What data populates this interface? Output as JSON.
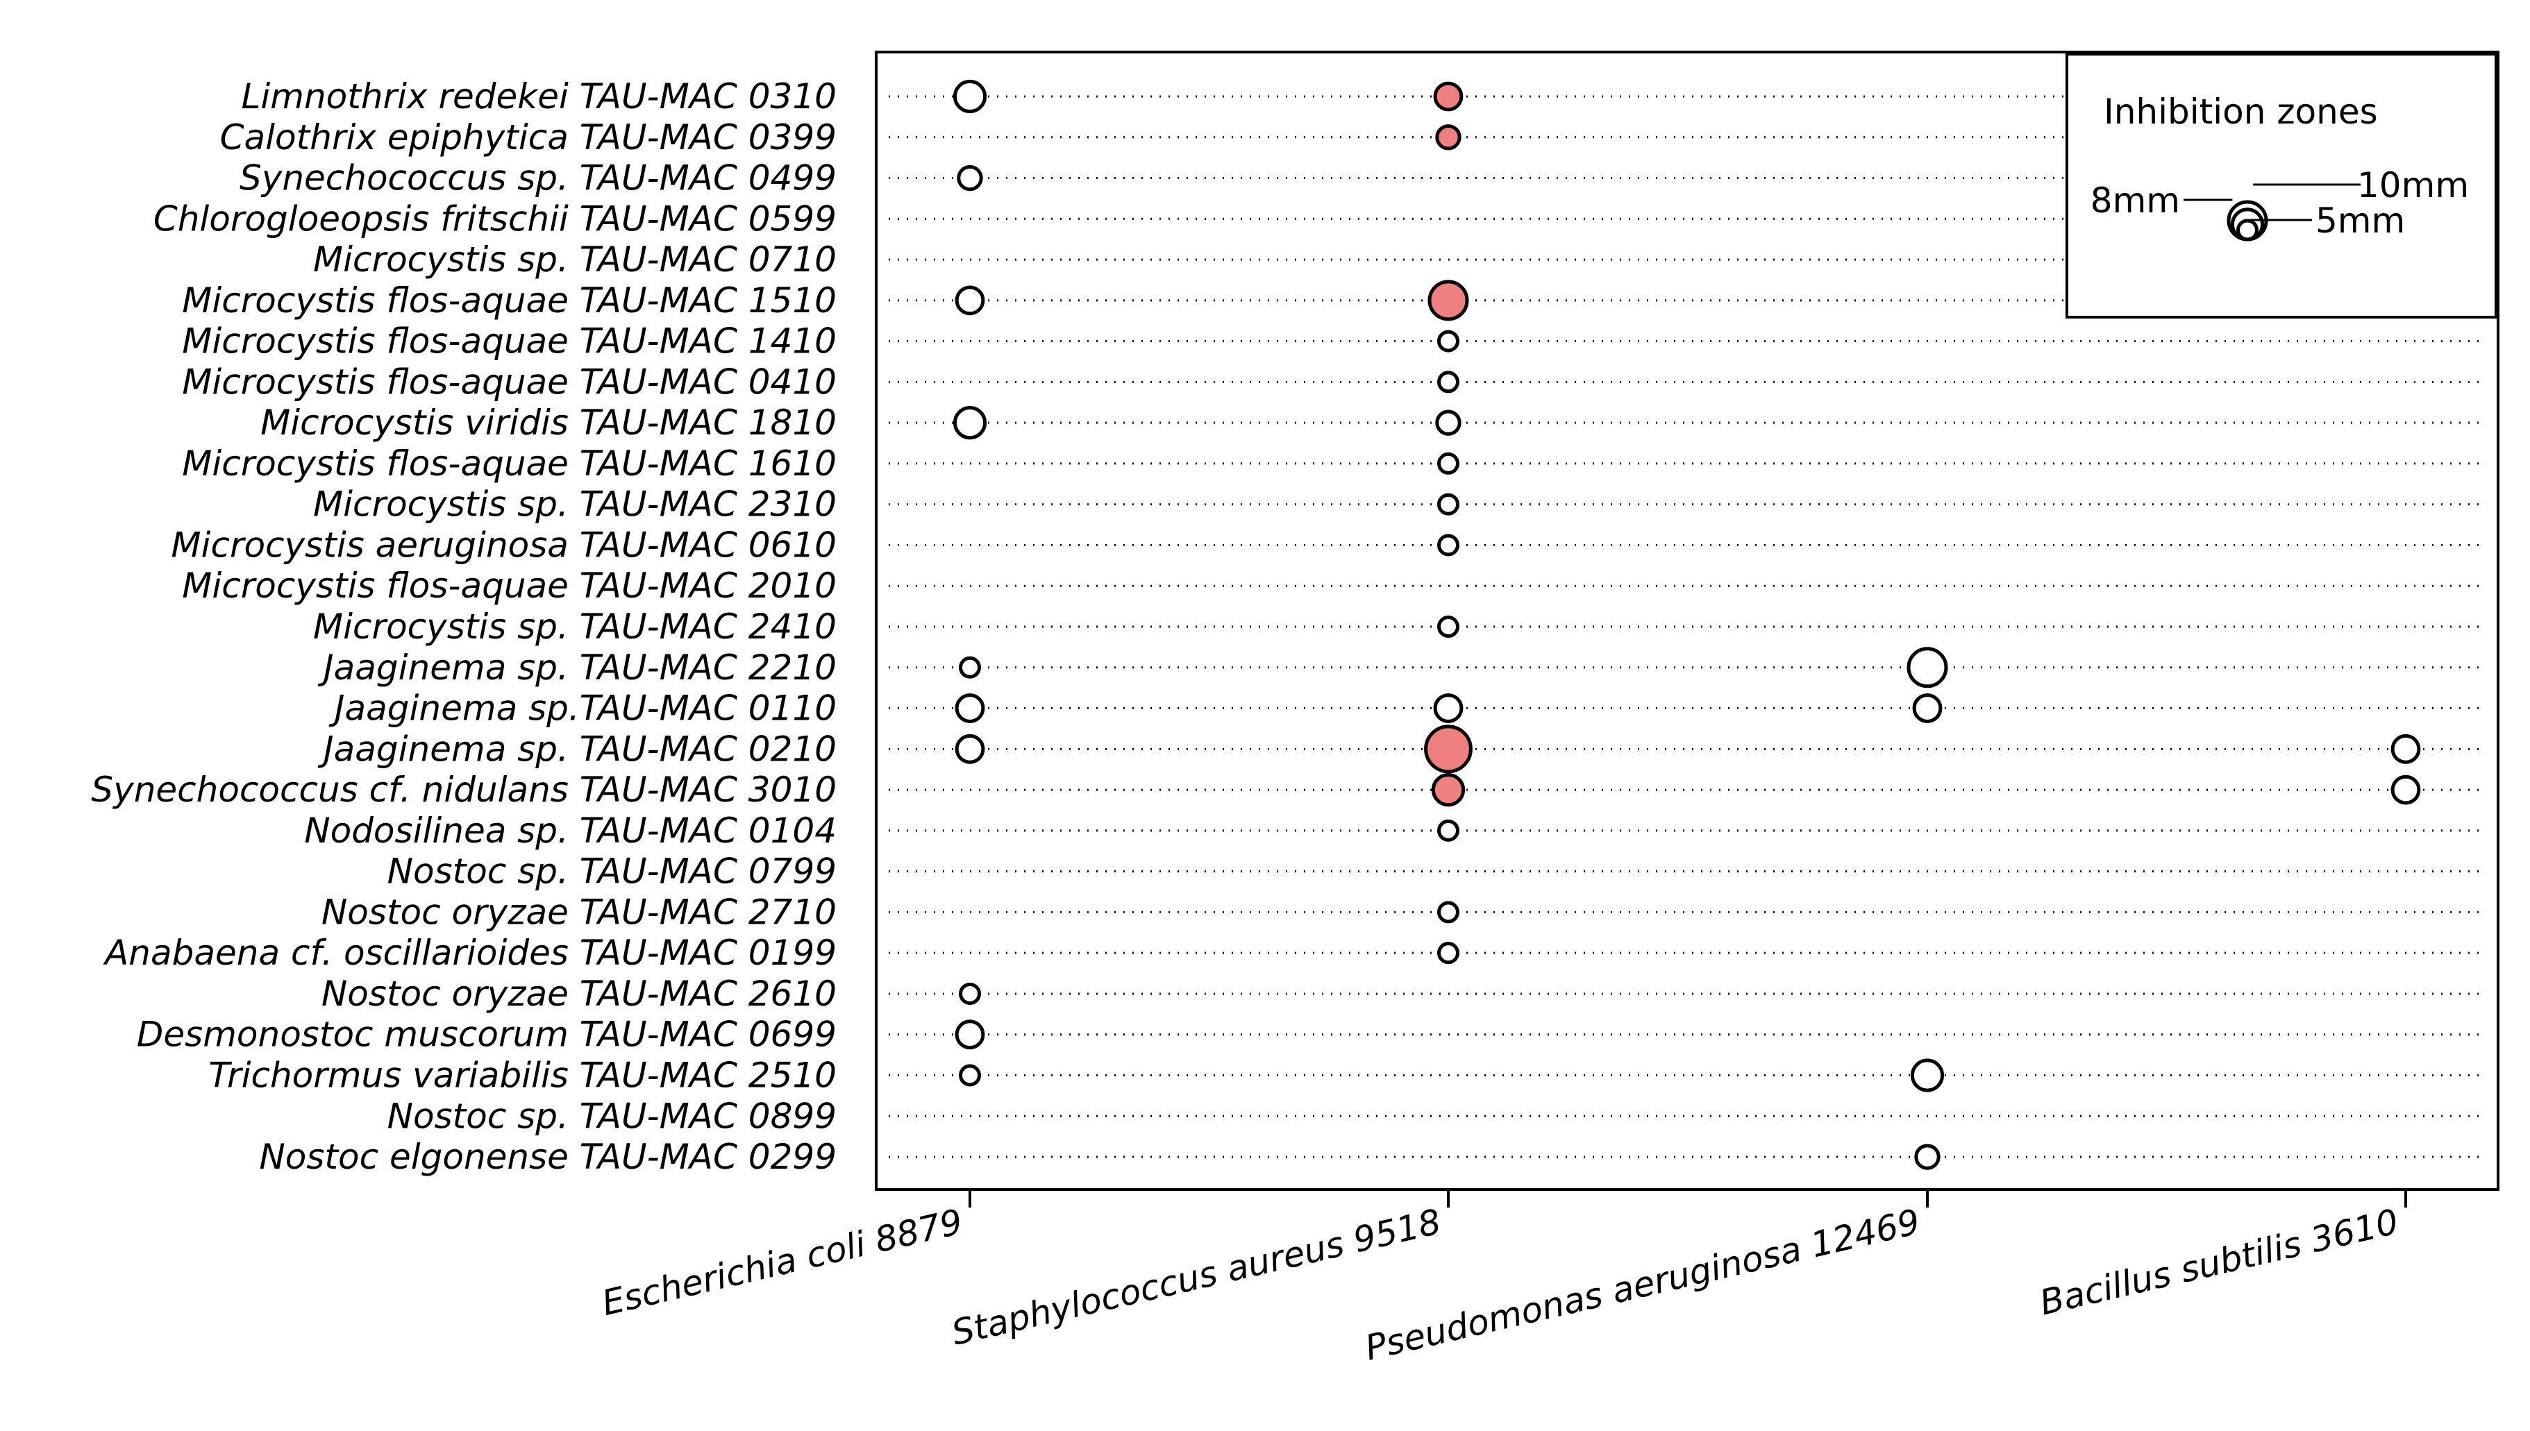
{
  "chart_data": {
    "type": "scatter",
    "subtype": "bubble",
    "categories_y": [
      "Limnothrix redekei  TAU-MAC 0310",
      "Calothrix epiphytica TAU-MAC 0399",
      "Synechococcus sp. TAU-MAC 0499",
      "Chlorogloeopsis fritschii TAU-MAC 0599",
      "Microcystis sp. TAU-MAC 0710",
      "Microcystis flos-aquae TAU-MAC 1510",
      "Microcystis flos-aquae TAU-MAC 1410",
      "Microcystis flos-aquae TAU-MAC 0410",
      "Microcystis viridis TAU-MAC 1810",
      "Microcystis flos-aquae TAU-MAC 1610",
      "Microcystis sp. TAU-MAC 2310",
      "Microcystis aeruginosa TAU-MAC 0610",
      "Microcystis flos-aquae TAU-MAC 2010",
      "Microcystis sp. TAU-MAC 2410",
      "Jaaginema sp. TAU-MAC 2210",
      "Jaaginema sp.TAU-MAC 0110",
      "Jaaginema sp. TAU-MAC 0210",
      "Synechococcus cf. nidulans TAU-MAC 3010",
      "Nodosilinea sp. TAU-MAC 0104",
      "Nostoc sp. TAU-MAC 0799",
      "Nostoc oryzae TAU-MAC 2710",
      "Anabaena cf. oscillarioides TAU-MAC 0199",
      "Nostoc oryzae TAU-MAC 2610",
      "Desmonostoc muscorum TAU-MAC 0699",
      "Trichormus variabilis TAU-MAC 2510",
      "Nostoc sp. TAU-MAC 0899",
      "Nostoc elgonense TAU-MAC 0299"
    ],
    "categories_x": [
      "Escherichia coli 8879",
      "Staphylococcus aureus 9518",
      "Pseudomonas aeruginosa 12469",
      "Bacillus subtilis 3610"
    ],
    "size_unit": "mm",
    "colors": {
      "filled": "#f08080",
      "open": "#ffffff",
      "stroke": "#000000"
    },
    "points": [
      {
        "y": 0,
        "x": 0,
        "size": 8,
        "filled": false
      },
      {
        "y": 0,
        "x": 1,
        "size": 7,
        "filled": true
      },
      {
        "y": 1,
        "x": 1,
        "size": 6,
        "filled": true
      },
      {
        "y": 2,
        "x": 0,
        "size": 6,
        "filled": false
      },
      {
        "y": 5,
        "x": 0,
        "size": 7,
        "filled": false
      },
      {
        "y": 5,
        "x": 1,
        "size": 10,
        "filled": true
      },
      {
        "y": 6,
        "x": 1,
        "size": 5,
        "filled": false
      },
      {
        "y": 7,
        "x": 1,
        "size": 5,
        "filled": false
      },
      {
        "y": 8,
        "x": 0,
        "size": 8,
        "filled": false
      },
      {
        "y": 8,
        "x": 1,
        "size": 6,
        "filled": false
      },
      {
        "y": 9,
        "x": 1,
        "size": 5,
        "filled": false
      },
      {
        "y": 10,
        "x": 1,
        "size": 5,
        "filled": false
      },
      {
        "y": 11,
        "x": 1,
        "size": 5,
        "filled": false
      },
      {
        "y": 13,
        "x": 1,
        "size": 5,
        "filled": false
      },
      {
        "y": 14,
        "x": 0,
        "size": 5,
        "filled": false
      },
      {
        "y": 14,
        "x": 2,
        "size": 10,
        "filled": false
      },
      {
        "y": 15,
        "x": 0,
        "size": 7,
        "filled": false
      },
      {
        "y": 15,
        "x": 1,
        "size": 7,
        "filled": false
      },
      {
        "y": 15,
        "x": 2,
        "size": 7,
        "filled": false
      },
      {
        "y": 16,
        "x": 0,
        "size": 7,
        "filled": false
      },
      {
        "y": 16,
        "x": 1,
        "size": 12,
        "filled": true
      },
      {
        "y": 16,
        "x": 3,
        "size": 7,
        "filled": false
      },
      {
        "y": 17,
        "x": 1,
        "size": 8,
        "filled": true
      },
      {
        "y": 17,
        "x": 3,
        "size": 7,
        "filled": false
      },
      {
        "y": 18,
        "x": 1,
        "size": 5,
        "filled": false
      },
      {
        "y": 20,
        "x": 1,
        "size": 5,
        "filled": false
      },
      {
        "y": 21,
        "x": 1,
        "size": 5,
        "filled": false
      },
      {
        "y": 22,
        "x": 0,
        "size": 5,
        "filled": false
      },
      {
        "y": 23,
        "x": 0,
        "size": 7,
        "filled": false
      },
      {
        "y": 24,
        "x": 0,
        "size": 5,
        "filled": false
      },
      {
        "y": 24,
        "x": 2,
        "size": 8,
        "filled": false
      },
      {
        "y": 26,
        "x": 2,
        "size": 6,
        "filled": false
      }
    ],
    "legend": {
      "title": "Inhibition zones",
      "placement": "top-right",
      "entries": [
        {
          "label": "10mm",
          "size": 10
        },
        {
          "label": "8mm",
          "size": 8
        },
        {
          "label": "5mm",
          "size": 5
        }
      ]
    },
    "grid": "dotted rows"
  }
}
